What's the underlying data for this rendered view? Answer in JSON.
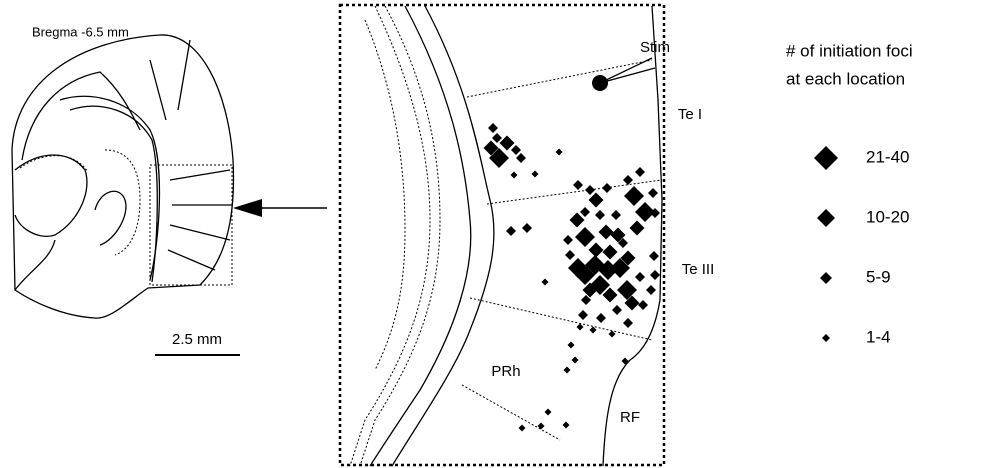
{
  "section": {
    "bregma": "Bregma  -6.5 mm",
    "scale_bar": "2.5 mm"
  },
  "inset": {
    "regions": [
      "Stim",
      "Te I",
      "Te III",
      "PRh",
      "RF"
    ]
  },
  "legend": {
    "title": [
      "# of initiation foci",
      "at each location"
    ],
    "entries": [
      "21-40",
      "10-20",
      "5-9",
      "1-4"
    ]
  }
}
